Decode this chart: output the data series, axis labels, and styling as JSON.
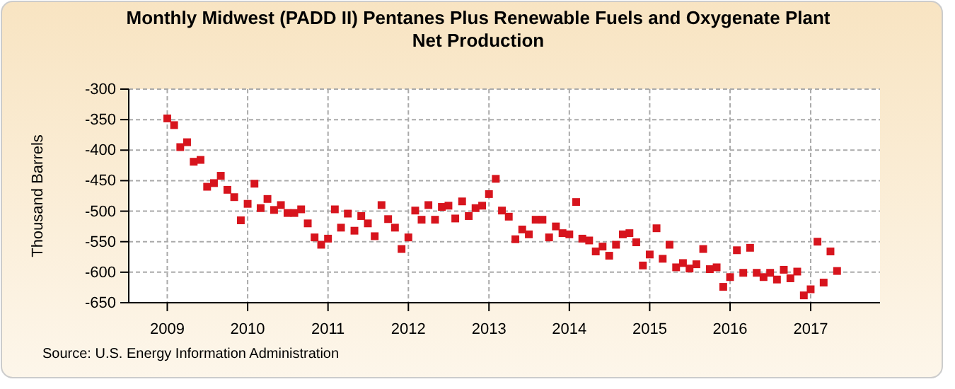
{
  "chart_data": {
    "type": "scatter",
    "title": "Monthly Midwest (PADD II) Pentanes Plus Renewable Fuels and Oxygenate Plant Net Production",
    "ylabel": "Thousand Barrels",
    "annotations": [
      "Source: U.S. Energy Information Administration"
    ],
    "x": [
      "2009-01",
      "2009-02",
      "2009-03",
      "2009-04",
      "2009-05",
      "2009-06",
      "2009-07",
      "2009-08",
      "2009-09",
      "2009-10",
      "2009-11",
      "2009-12",
      "2010-01",
      "2010-02",
      "2010-03",
      "2010-04",
      "2010-05",
      "2010-06",
      "2010-07",
      "2010-08",
      "2010-09",
      "2010-10",
      "2010-11",
      "2010-12",
      "2011-01",
      "2011-02",
      "2011-03",
      "2011-04",
      "2011-05",
      "2011-06",
      "2011-07",
      "2011-08",
      "2011-09",
      "2011-10",
      "2011-11",
      "2011-12",
      "2012-01",
      "2012-02",
      "2012-03",
      "2012-04",
      "2012-05",
      "2012-06",
      "2012-07",
      "2012-08",
      "2012-09",
      "2012-10",
      "2012-11",
      "2012-12",
      "2013-01",
      "2013-02",
      "2013-03",
      "2013-04",
      "2013-05",
      "2013-06",
      "2013-07",
      "2013-08",
      "2013-09",
      "2013-10",
      "2013-11",
      "2013-12",
      "2014-01",
      "2014-02",
      "2014-03",
      "2014-04",
      "2014-05",
      "2014-06",
      "2014-07",
      "2014-08",
      "2014-09",
      "2014-10",
      "2014-11",
      "2014-12",
      "2015-01",
      "2015-02",
      "2015-03",
      "2015-04",
      "2015-05",
      "2015-06",
      "2015-07",
      "2015-08",
      "2015-09",
      "2015-10",
      "2015-11",
      "2015-12",
      "2016-01",
      "2016-02",
      "2016-03",
      "2016-04",
      "2016-05",
      "2016-06",
      "2016-07",
      "2016-08",
      "2016-09",
      "2016-10",
      "2016-11",
      "2016-12",
      "2017-01",
      "2017-02",
      "2017-03",
      "2017-04",
      "2017-05"
    ],
    "series": [
      {
        "color": "#d7141d",
        "values": [
          -348,
          -359,
          -395,
          -387,
          -419,
          -416,
          -460,
          -454,
          -442,
          -465,
          -477,
          -515,
          -488,
          -455,
          -495,
          -480,
          -498,
          -490,
          -503,
          -503,
          -497,
          -520,
          -543,
          -555,
          -545,
          -497,
          -527,
          -504,
          -532,
          -508,
          -520,
          -541,
          -490,
          -513,
          -527,
          -562,
          -543,
          -499,
          -514,
          -490,
          -514,
          -493,
          -491,
          -512,
          -484,
          -508,
          -495,
          -491,
          -472,
          -447,
          -499,
          -509,
          -546,
          -530,
          -538,
          -514,
          -514,
          -543,
          -525,
          -536,
          -538,
          -485,
          -545,
          -548,
          -566,
          -558,
          -573,
          -555,
          -538,
          -536,
          -551,
          -589,
          -571,
          -528,
          -578,
          -555,
          -592,
          -585,
          -594,
          -587,
          -562,
          -595,
          -592,
          -624,
          -608,
          -564,
          -601,
          -560,
          -601,
          -608,
          -601,
          -612,
          -596,
          -610,
          -599,
          -638,
          -628,
          -550,
          -617,
          -566,
          -598
        ]
      }
    ],
    "xlim": [
      "2008-07-10",
      "2017-11-12"
    ],
    "xticks": [
      {
        "value": "2009",
        "label": "2009"
      },
      {
        "value": "2010",
        "label": "2010"
      },
      {
        "value": "2011",
        "label": "2011"
      },
      {
        "value": "2012",
        "label": "2012"
      },
      {
        "value": "2013",
        "label": "2013"
      },
      {
        "value": "2014",
        "label": "2014"
      },
      {
        "value": "2015",
        "label": "2015"
      },
      {
        "value": "2016",
        "label": "2016"
      },
      {
        "value": "2017",
        "label": "2017"
      }
    ],
    "ylim": [
      -650,
      -300
    ],
    "yticks": [
      -650,
      -600,
      -550,
      -500,
      -450,
      -400,
      -350,
      -300
    ],
    "grid": true,
    "marker": "square"
  }
}
